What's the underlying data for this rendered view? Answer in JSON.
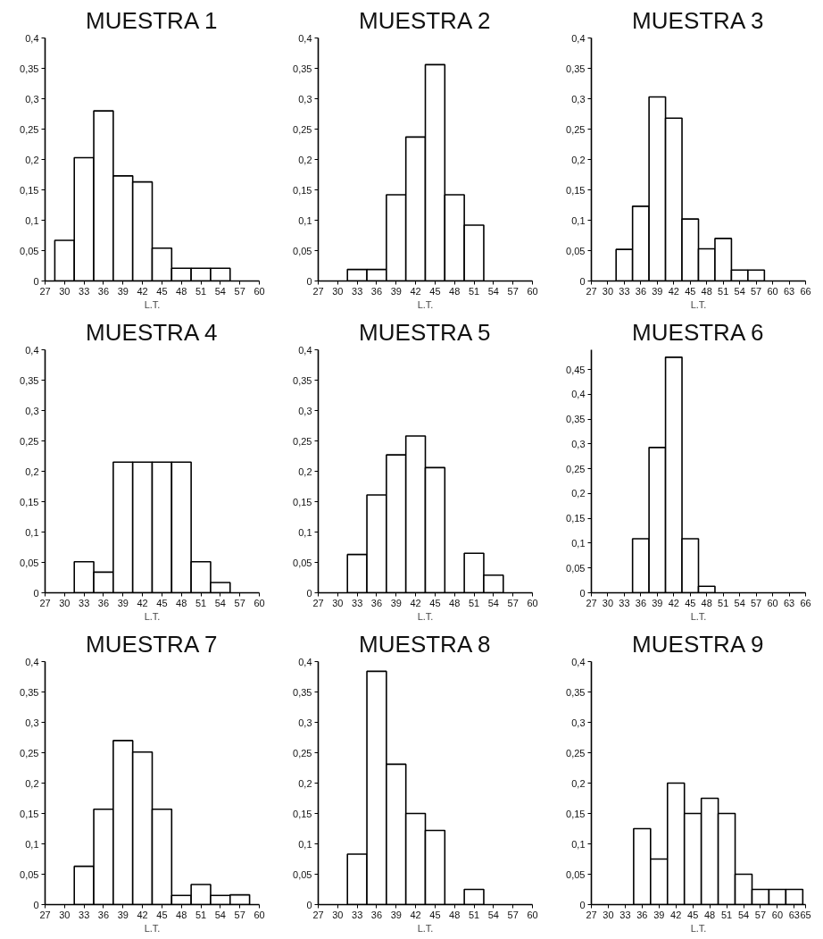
{
  "chart_data": [
    {
      "type": "histogram",
      "title": "MUESTRA 1",
      "xlabel": "L.T.",
      "bins": [
        28.5,
        31.5,
        34.5,
        37.5,
        40.5,
        43.5,
        46.5,
        49.5,
        52.5,
        55.5
      ],
      "values": [
        0.067,
        0.203,
        0.28,
        0.173,
        0.163,
        0.054,
        0.021,
        0.021,
        0.021
      ],
      "color": "#ffffff",
      "xlim": [
        27,
        60
      ],
      "xticks": [
        27,
        30,
        33,
        36,
        39,
        42,
        45,
        48,
        51,
        54,
        57,
        60
      ],
      "ylim": [
        0,
        0.4
      ],
      "yticks": [
        0,
        {
          "value": 0.05,
          "label": "0,05"
        },
        {
          "value": 0.1,
          "label": "0,1"
        },
        {
          "value": 0.15,
          "label": "0,15"
        },
        {
          "value": 0.2,
          "label": "0,2"
        },
        {
          "value": 0.25,
          "label": "0,25"
        },
        {
          "value": 0.3,
          "label": "0,3"
        },
        {
          "value": 0.35,
          "label": "0,35"
        },
        {
          "value": 0.4,
          "label": "0,4"
        }
      ]
    },
    {
      "type": "histogram",
      "title": "MUESTRA 2",
      "xlabel": "L.T.",
      "bins": [
        31.5,
        34.5,
        37.5,
        40.5,
        43.5,
        46.5,
        49.5,
        52.5
      ],
      "values": [
        0.019,
        0.019,
        0.142,
        0.237,
        0.356,
        0.142,
        0.092
      ],
      "color": "#ffffff",
      "xlim": [
        27,
        60
      ],
      "xticks": [
        27,
        30,
        33,
        36,
        39,
        42,
        45,
        48,
        51,
        54,
        57,
        60
      ],
      "ylim": [
        0,
        0.4
      ],
      "yticks": [
        0,
        {
          "value": 0.05,
          "label": "0,05"
        },
        {
          "value": 0.1,
          "label": "0,1"
        },
        {
          "value": 0.15,
          "label": "0,15"
        },
        {
          "value": 0.2,
          "label": "0,2"
        },
        {
          "value": 0.25,
          "label": "0,25"
        },
        {
          "value": 0.3,
          "label": "0,3"
        },
        {
          "value": 0.35,
          "label": "0,35"
        },
        {
          "value": 0.4,
          "label": "0,4"
        }
      ]
    },
    {
      "type": "histogram",
      "title": "MUESTRA 3",
      "xlabel": "L.T.",
      "bins": [
        31.5,
        34.5,
        37.5,
        40.5,
        43.5,
        46.5,
        49.5,
        52.5,
        55.5,
        58.5
      ],
      "values": [
        0.052,
        0.123,
        0.303,
        0.268,
        0.102,
        0.053,
        0.07,
        0.018,
        0.018
      ],
      "color": "#ffffff",
      "xlim": [
        27,
        66
      ],
      "xticks": [
        27,
        30,
        33,
        36,
        39,
        42,
        45,
        48,
        51,
        54,
        57,
        60,
        63,
        66
      ],
      "ylim": [
        0,
        0.4
      ],
      "yticks": [
        0,
        {
          "value": 0.05,
          "label": "0,05"
        },
        {
          "value": 0.1,
          "label": "0,1"
        },
        {
          "value": 0.15,
          "label": "0,15"
        },
        {
          "value": 0.2,
          "label": "0,2"
        },
        {
          "value": 0.25,
          "label": "0,25"
        },
        {
          "value": 0.3,
          "label": "0,3"
        },
        {
          "value": 0.35,
          "label": "0,35"
        },
        {
          "value": 0.4,
          "label": "0,4"
        }
      ]
    },
    {
      "type": "histogram",
      "title": "MUESTRA 4",
      "xlabel": "L.T.",
      "bins": [
        31.5,
        34.5,
        37.5,
        40.5,
        43.5,
        46.5,
        49.5,
        52.5,
        55.5
      ],
      "values": [
        0.051,
        0.034,
        0.215,
        0.215,
        0.215,
        0.215,
        0.051,
        0.017
      ],
      "color": "#ffffff",
      "xlim": [
        27,
        60
      ],
      "xticks": [
        27,
        30,
        33,
        36,
        39,
        42,
        45,
        48,
        51,
        54,
        57,
        60
      ],
      "ylim": [
        0,
        0.4
      ],
      "yticks": [
        0,
        {
          "value": 0.05,
          "label": "0,05"
        },
        {
          "value": 0.1,
          "label": "0,1"
        },
        {
          "value": 0.15,
          "label": "0,15"
        },
        {
          "value": 0.2,
          "label": "0,2"
        },
        {
          "value": 0.25,
          "label": "0,25"
        },
        {
          "value": 0.3,
          "label": "0,3"
        },
        {
          "value": 0.35,
          "label": "0,35"
        },
        {
          "value": 0.4,
          "label": "0,4"
        }
      ]
    },
    {
      "type": "histogram",
      "title": "MUESTRA 5",
      "xlabel": "L.T.",
      "bins": [
        31.5,
        34.5,
        37.5,
        40.5,
        43.5,
        46.5,
        49.5,
        52.5,
        55.5
      ],
      "values": [
        0.063,
        0.161,
        0.227,
        0.258,
        0.206,
        0,
        0.065,
        0.029
      ],
      "color": "#ffffff",
      "xlim": [
        27,
        60
      ],
      "xticks": [
        27,
        30,
        33,
        36,
        39,
        42,
        45,
        48,
        51,
        54,
        57,
        60
      ],
      "ylim": [
        0,
        0.4
      ],
      "yticks": [
        0,
        {
          "value": 0.05,
          "label": "0,05"
        },
        {
          "value": 0.1,
          "label": "0,1"
        },
        {
          "value": 0.15,
          "label": "0,15"
        },
        {
          "value": 0.2,
          "label": "0,2"
        },
        {
          "value": 0.25,
          "label": "0,25"
        },
        {
          "value": 0.3,
          "label": "0,3"
        },
        {
          "value": 0.35,
          "label": "0,35"
        },
        {
          "value": 0.4,
          "label": "0,4"
        }
      ]
    },
    {
      "type": "histogram",
      "title": "MUESTRA 6",
      "xlabel": "L.T.",
      "bins": [
        34.5,
        37.5,
        40.5,
        43.5,
        46.5,
        49.5
      ],
      "values": [
        0.109,
        0.293,
        0.475,
        0.109,
        0.013
      ],
      "color": "#ffffff",
      "xlim": [
        27,
        66
      ],
      "xticks": [
        27,
        30,
        33,
        36,
        39,
        42,
        45,
        48,
        51,
        54,
        57,
        60,
        63,
        66
      ],
      "ylim": [
        0,
        0.49
      ],
      "yticks": [
        0,
        {
          "value": 0.05,
          "label": "0,05"
        },
        {
          "value": 0.1,
          "label": "0,1"
        },
        {
          "value": 0.15,
          "label": "0,15"
        },
        {
          "value": 0.2,
          "label": "0,2"
        },
        {
          "value": 0.25,
          "label": "0,25"
        },
        {
          "value": 0.3,
          "label": "0,3"
        },
        {
          "value": 0.35,
          "label": "0,35"
        },
        {
          "value": 0.4,
          "label": "0,4"
        },
        {
          "value": 0.45,
          "label": "0,45"
        }
      ]
    },
    {
      "type": "histogram",
      "title": "MUESTRA 7",
      "xlabel": "L.T.",
      "bins": [
        31.5,
        34.5,
        37.5,
        40.5,
        43.5,
        46.5,
        49.5,
        52.5,
        55.5,
        58.5
      ],
      "values": [
        0.063,
        0.157,
        0.27,
        0.251,
        0.157,
        0.015,
        0.033,
        0.015,
        0.016
      ],
      "color": "#ffffff",
      "xlim": [
        27,
        60
      ],
      "xticks": [
        27,
        30,
        33,
        36,
        39,
        42,
        45,
        48,
        51,
        54,
        57,
        60
      ],
      "ylim": [
        0,
        0.4
      ],
      "yticks": [
        0,
        {
          "value": 0.05,
          "label": "0,05"
        },
        {
          "value": 0.1,
          "label": "0,1"
        },
        {
          "value": 0.15,
          "label": "0,15"
        },
        {
          "value": 0.2,
          "label": "0,2"
        },
        {
          "value": 0.25,
          "label": "0,25"
        },
        {
          "value": 0.3,
          "label": "0,3"
        },
        {
          "value": 0.35,
          "label": "0,35"
        },
        {
          "value": 0.4,
          "label": "0,4"
        }
      ]
    },
    {
      "type": "histogram",
      "title": "MUESTRA 8",
      "xlabel": "L.T.",
      "bins": [
        31.5,
        34.5,
        37.5,
        40.5,
        43.5,
        46.5,
        49.5,
        52.5
      ],
      "values": [
        0.083,
        0.384,
        0.231,
        0.15,
        0.122,
        0,
        0.025
      ],
      "color": "#ffffff",
      "xlim": [
        27,
        60
      ],
      "xticks": [
        27,
        30,
        33,
        36,
        39,
        42,
        45,
        48,
        51,
        54,
        57,
        60
      ],
      "ylim": [
        0,
        0.4
      ],
      "yticks": [
        0,
        {
          "value": 0.05,
          "label": "0,05"
        },
        {
          "value": 0.1,
          "label": "0,1"
        },
        {
          "value": 0.15,
          "label": "0,15"
        },
        {
          "value": 0.2,
          "label": "0,2"
        },
        {
          "value": 0.25,
          "label": "0,25"
        },
        {
          "value": 0.3,
          "label": "0,3"
        },
        {
          "value": 0.35,
          "label": "0,35"
        },
        {
          "value": 0.4,
          "label": "0,4"
        }
      ]
    },
    {
      "type": "histogram",
      "title": "MUESTRA 9",
      "xlabel": "L.T.",
      "bins": [
        34.5,
        37.5,
        40.5,
        43.5,
        46.5,
        49.5,
        52.5,
        55.5,
        58.5,
        61.5,
        64.5
      ],
      "values": [
        0.125,
        0.075,
        0.2,
        0.15,
        0.175,
        0.15,
        0.05,
        0.025,
        0.025,
        0.025
      ],
      "color": "#ffffff",
      "xlim": [
        27,
        65
      ],
      "xticks": [
        27,
        30,
        33,
        36,
        39,
        42,
        45,
        48,
        51,
        54,
        57,
        60,
        63,
        65
      ],
      "ylim": [
        0,
        0.4
      ],
      "yticks": [
        0,
        {
          "value": 0.05,
          "label": "0,05"
        },
        {
          "value": 0.1,
          "label": "0,1"
        },
        {
          "value": 0.15,
          "label": "0,15"
        },
        {
          "value": 0.2,
          "label": "0,2"
        },
        {
          "value": 0.25,
          "label": "0,25"
        },
        {
          "value": 0.3,
          "label": "0,3"
        },
        {
          "value": 0.35,
          "label": "0,35"
        },
        {
          "value": 0.4,
          "label": "0,4"
        }
      ]
    }
  ]
}
